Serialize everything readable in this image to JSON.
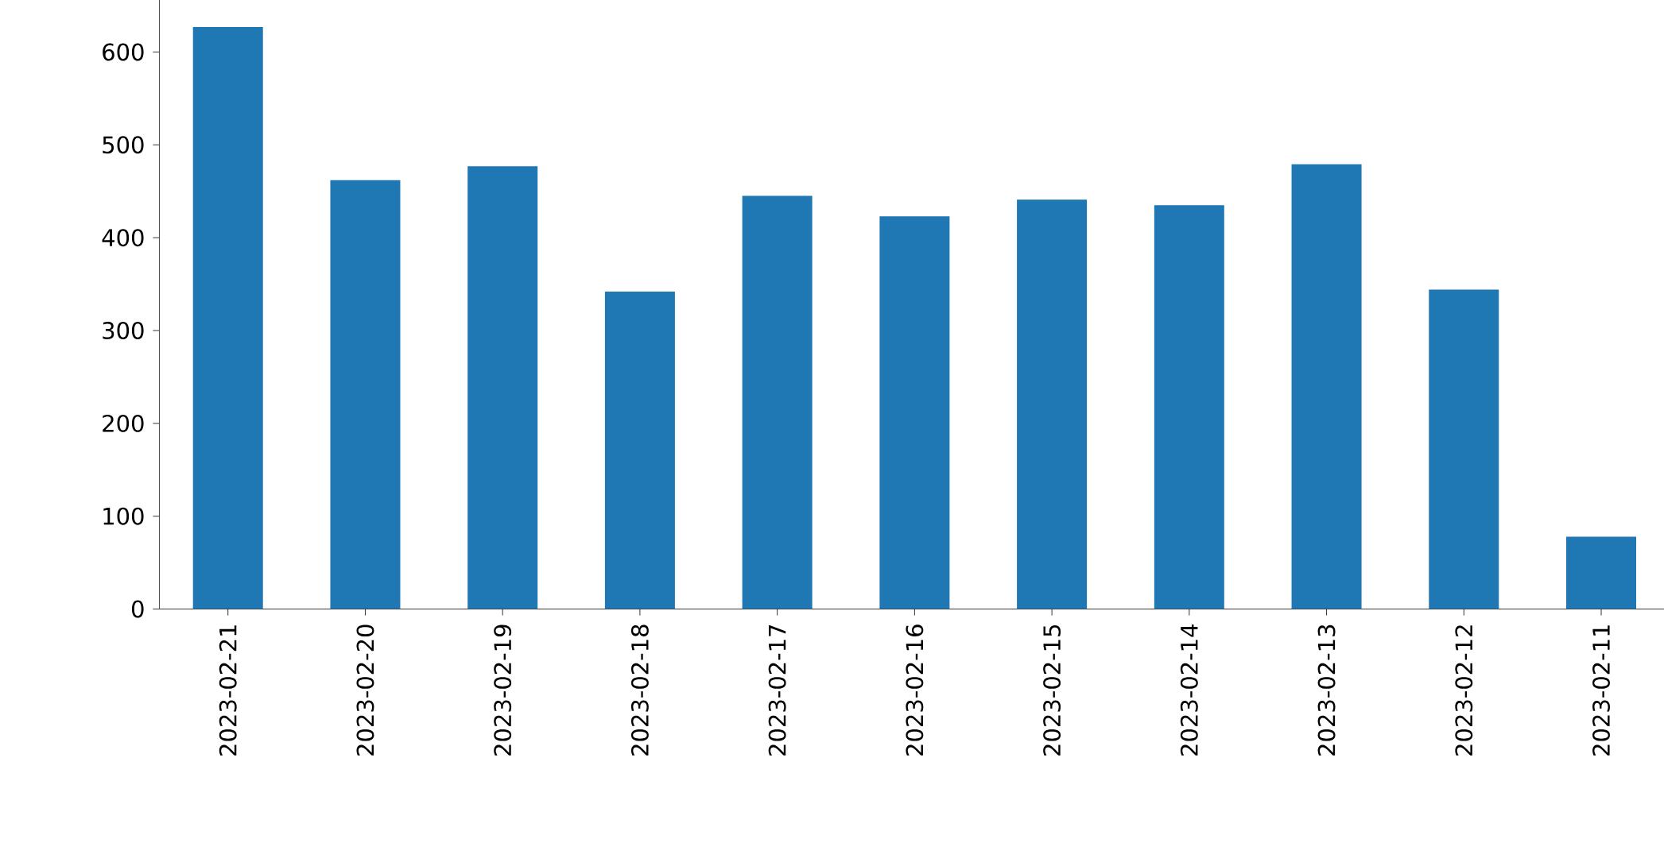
{
  "chart_data": {
    "type": "bar",
    "categories": [
      "2023-02-21",
      "2023-02-20",
      "2023-02-19",
      "2023-02-18",
      "2023-02-17",
      "2023-02-16",
      "2023-02-15",
      "2023-02-14",
      "2023-02-13",
      "2023-02-12",
      "2023-02-11"
    ],
    "values": [
      627,
      462,
      477,
      342,
      445,
      423,
      441,
      435,
      479,
      344,
      78
    ],
    "color": "#1f77b4",
    "ylim": [
      0,
      659
    ],
    "yticks": [
      0,
      100,
      200,
      300,
      400,
      500,
      600
    ],
    "grid": false
  }
}
